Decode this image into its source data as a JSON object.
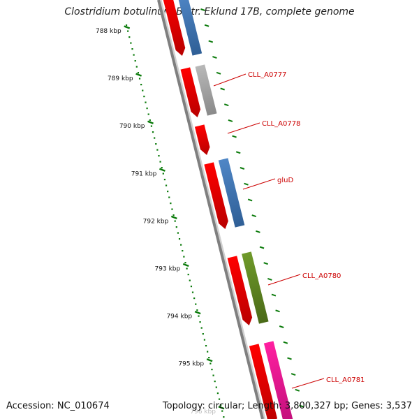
{
  "title": "Clostridium botulinum B str. Eklund 17B, complete genome",
  "footer": {
    "accession": "Accession: NC_010674",
    "topology": "Topology: circular; Length: 3,800,327 bp; Genes: 3,537"
  },
  "colors": {
    "backbone": "#7f7f7f",
    "kbp_ticks": "#0a7a0a",
    "label_red": "#cc0000",
    "cds_red": "#ff0000",
    "gene_blue": "#4f86c6",
    "gene_grey": "#b8b8b8",
    "gene_olive": "#6f9a2a",
    "gene_pink": "#ff1fa0"
  },
  "genome_map": {
    "kbp_ticks": [
      "788 kbp",
      "789 kbp",
      "790 kbp",
      "791 kbp",
      "792 kbp",
      "793 kbp",
      "794 kbp",
      "795 kbp",
      "796 kbp"
    ],
    "features": [
      {
        "track": "cds",
        "color": "red"
      },
      {
        "track": "gene",
        "color": "blue"
      },
      {
        "track": "cds",
        "color": "red"
      },
      {
        "track": "gene",
        "color": "grey"
      },
      {
        "track": "cds",
        "color": "red"
      },
      {
        "track": "cds",
        "color": "red"
      },
      {
        "track": "gene",
        "color": "blue"
      },
      {
        "track": "cds",
        "color": "red"
      },
      {
        "track": "gene",
        "color": "olive"
      },
      {
        "track": "cds",
        "color": "red"
      },
      {
        "track": "gene",
        "color": "pink"
      }
    ],
    "gene_labels": [
      "CLL_A0777",
      "CLL_A0778",
      "gluD",
      "CLL_A0780",
      "CLL_A0781"
    ]
  }
}
